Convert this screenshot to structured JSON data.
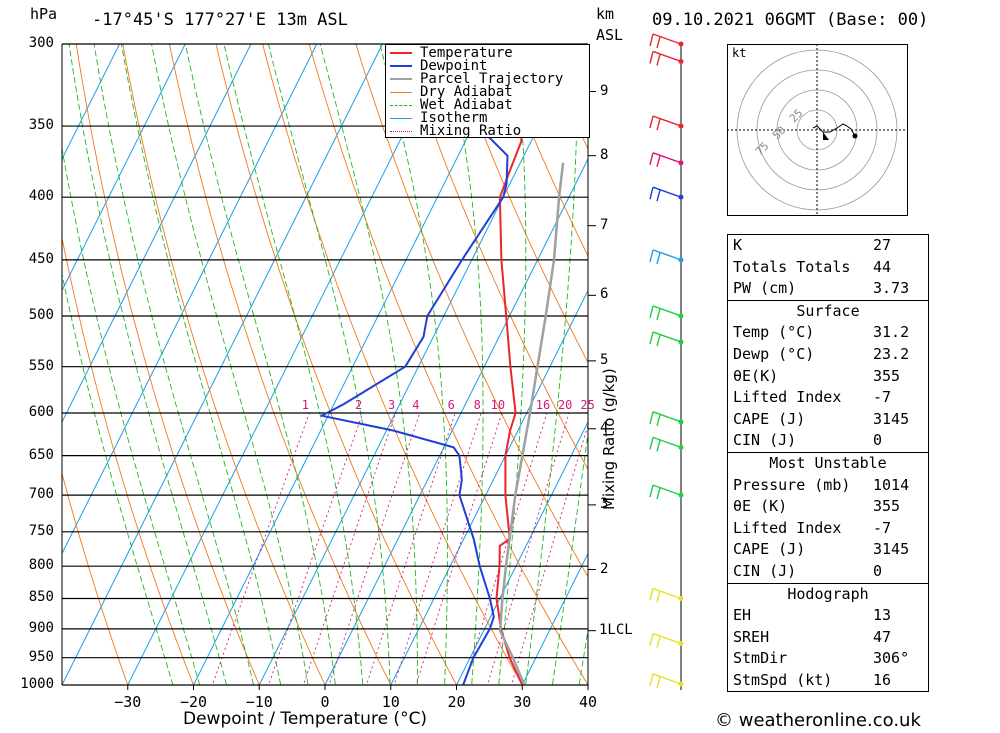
{
  "header": {
    "p_unit": "hPa",
    "location": "-17°45'S 177°27'E 13m ASL",
    "km_unit_1": "km",
    "km_unit_2": "ASL",
    "datetime": "09.10.2021 06GMT (Base: 00)"
  },
  "footer": {
    "copyright": "© weatheronline.co.uk"
  },
  "colors": {
    "temperature": "#e8262c",
    "dewpoint": "#1f3fd6",
    "parcel": "#a0a0a0",
    "dry_adiabat": "#f07a1c",
    "wet_adiabat": "#1fb81f",
    "isotherm": "#1a9ee8",
    "mixing_ratio": "#d4197a",
    "wind_red": "#e8262c",
    "wind_magenta": "#e0147a",
    "wind_blue": "#1f3fd6",
    "wind_lightblue": "#1a9ee8",
    "wind_green": "#1fd040",
    "wind_yellow": "#e8e020"
  },
  "chart_data": {
    "type": "line",
    "title": "-17°45'S 177°27'E 13m ASL",
    "xlabel": "Dewpoint / Temperature (°C)",
    "ylabel": "hPa",
    "y2label": "Mixing Ratio (g/kg)",
    "xlim": [
      -40,
      40
    ],
    "ylim": [
      1000,
      300
    ],
    "x_ticks": [
      -30,
      -20,
      -10,
      0,
      10,
      20,
      30,
      40
    ],
    "x_tick_labels": [
      "−30",
      "−20",
      "−10",
      "0",
      "10",
      "20",
      "30",
      "40"
    ],
    "pressure_ticks": [
      300,
      350,
      400,
      450,
      500,
      550,
      600,
      650,
      700,
      750,
      800,
      850,
      900,
      950,
      1000
    ],
    "km_ticks": [
      {
        "label": "9",
        "p": 328
      },
      {
        "label": "8",
        "p": 370
      },
      {
        "label": "7",
        "p": 422
      },
      {
        "label": "6",
        "p": 481
      },
      {
        "label": "5",
        "p": 544
      },
      {
        "label": "4",
        "p": 618
      },
      {
        "label": "3",
        "p": 713
      },
      {
        "label": "2",
        "p": 805
      },
      {
        "label": "1LCL",
        "p": 903
      }
    ],
    "mixing_ratio_labels": [
      "1",
      "2",
      "3",
      "4",
      "6",
      "8",
      "10",
      "16",
      "20",
      "25"
    ],
    "series": [
      {
        "name": "Temperature",
        "points": [
          [
            1012,
            29.5
          ],
          [
            1000,
            30
          ],
          [
            950,
            26
          ],
          [
            900,
            22.5
          ],
          [
            850,
            19.5
          ],
          [
            800,
            17.5
          ],
          [
            770,
            16
          ],
          [
            760,
            17
          ],
          [
            700,
            13
          ],
          [
            650,
            10
          ],
          [
            620,
            8.8
          ],
          [
            600,
            8.3
          ],
          [
            550,
            4
          ],
          [
            500,
            -0.5
          ],
          [
            450,
            -5.5
          ],
          [
            400,
            -10.5
          ],
          [
            380,
            -11
          ],
          [
            360,
            -11.5
          ],
          [
            340,
            -14
          ],
          [
            320,
            -17.5
          ],
          [
            310,
            -20
          ],
          [
            300,
            -21.5
          ]
        ]
      },
      {
        "name": "Dewpoint",
        "points": [
          [
            1012,
            22.5
          ],
          [
            1000,
            21
          ],
          [
            950,
            20.5
          ],
          [
            900,
            20.8
          ],
          [
            880,
            20.5
          ],
          [
            850,
            18.5
          ],
          [
            800,
            14.5
          ],
          [
            760,
            11.5
          ],
          [
            700,
            6
          ],
          [
            680,
            5.2
          ],
          [
            650,
            3
          ],
          [
            640,
            1.5
          ],
          [
            620,
            -9
          ],
          [
            603,
            -21
          ],
          [
            590,
            -18.5
          ],
          [
            550,
            -12
          ],
          [
            520,
            -11.5
          ],
          [
            500,
            -12.5
          ],
          [
            450,
            -11.5
          ],
          [
            400,
            -10
          ],
          [
            390,
            -10.5
          ],
          [
            370,
            -12.5
          ],
          [
            345,
            -21
          ],
          [
            330,
            -29
          ],
          [
            325,
            -29.5
          ],
          [
            315,
            -34.5
          ],
          [
            312,
            -34.5
          ],
          [
            310,
            -31
          ],
          [
            307,
            -20.5
          ],
          [
            305,
            -31.5
          ],
          [
            300,
            -38
          ]
        ]
      },
      {
        "name": "Parcel Trajectory",
        "points": [
          [
            1012,
            31.2
          ],
          [
            950,
            26.5
          ],
          [
            903,
            22.5
          ],
          [
            850,
            20.4
          ],
          [
            800,
            18.5
          ],
          [
            700,
            14.5
          ],
          [
            600,
            10.5
          ],
          [
            500,
            5.5
          ],
          [
            450,
            2.5
          ],
          [
            400,
            -1.5
          ],
          [
            375,
            -3.5
          ]
        ]
      }
    ],
    "legend": {
      "placement": "top-center",
      "entries": [
        "Temperature",
        "Dewpoint",
        "Parcel Trajectory",
        "Dry Adiabat",
        "Wet Adiabat",
        "Isotherm",
        "Mixing Ratio"
      ]
    },
    "hodograph": {
      "unit_label": "kt",
      "ring_labels": [
        "25",
        "50",
        "75"
      ]
    },
    "wind_barbs": [
      {
        "p": 300,
        "color": "wind_red"
      },
      {
        "p": 310,
        "color": "wind_red"
      },
      {
        "p": 350,
        "color": "wind_red"
      },
      {
        "p": 375,
        "color": "wind_magenta"
      },
      {
        "p": 400,
        "color": "wind_blue"
      },
      {
        "p": 450,
        "color": "wind_lightblue"
      },
      {
        "p": 500,
        "color": "wind_green"
      },
      {
        "p": 525,
        "color": "wind_green"
      },
      {
        "p": 610,
        "color": "wind_green"
      },
      {
        "p": 640,
        "color": "wind_green"
      },
      {
        "p": 700,
        "color": "wind_green"
      },
      {
        "p": 850,
        "color": "wind_yellow"
      },
      {
        "p": 925,
        "color": "wind_yellow"
      },
      {
        "p": 1000,
        "color": "wind_yellow"
      }
    ]
  },
  "indices": {
    "top": [
      {
        "label": "K",
        "value": "27"
      },
      {
        "label": "Totals Totals",
        "value": "44"
      },
      {
        "label": "PW (cm)",
        "value": "3.73"
      }
    ],
    "surface_title": "Surface",
    "surface": [
      {
        "label": "Temp (°C)",
        "value": "31.2"
      },
      {
        "label": "Dewp (°C)",
        "value": "23.2"
      },
      {
        "label": "θE(K)",
        "value": "355"
      },
      {
        "label": "Lifted Index",
        "value": "-7"
      },
      {
        "label": "CAPE (J)",
        "value": "3145"
      },
      {
        "label": "CIN (J)",
        "value": "0"
      }
    ],
    "mu_title": "Most Unstable",
    "mu": [
      {
        "label": "Pressure (mb)",
        "value": "1014"
      },
      {
        "label": "θE (K)",
        "value": "355"
      },
      {
        "label": "Lifted Index",
        "value": "-7"
      },
      {
        "label": "CAPE (J)",
        "value": "3145"
      },
      {
        "label": "CIN (J)",
        "value": "0"
      }
    ],
    "hodo_title": "Hodograph",
    "hodo": [
      {
        "label": "EH",
        "value": "13"
      },
      {
        "label": "SREH",
        "value": "47"
      },
      {
        "label": "StmDir",
        "value": "306°"
      },
      {
        "label": "StmSpd (kt)",
        "value": "16"
      }
    ]
  }
}
